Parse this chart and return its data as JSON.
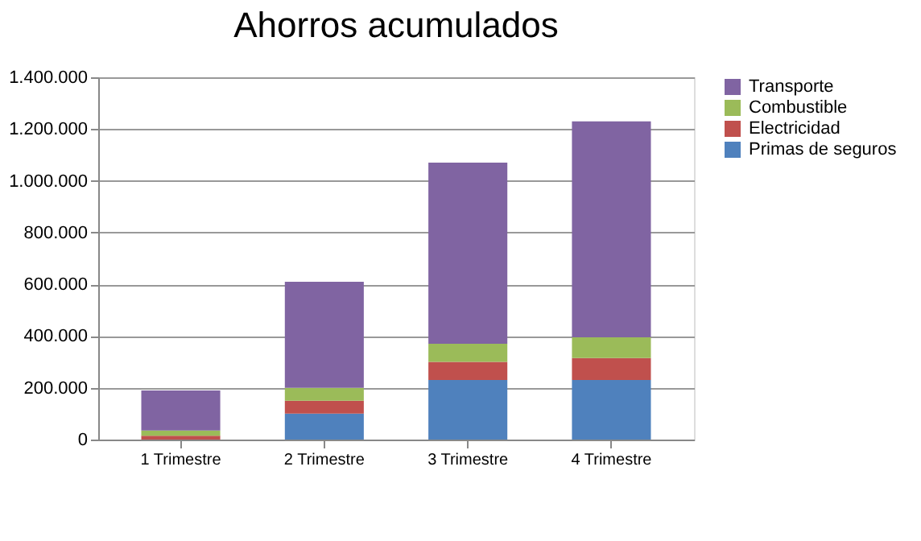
{
  "chart_data": {
    "type": "bar",
    "title": "Ahorros acumulados",
    "stacked": true,
    "categories": [
      "1 Trimestre",
      "2 Trimestre",
      "3 Trimestre",
      "4 Trimestre"
    ],
    "series": [
      {
        "name": "Primas de seguros",
        "color": "#4f81bd",
        "values": [
          0,
          100000,
          230000,
          230000
        ]
      },
      {
        "name": "Electricidad",
        "color": "#c0504d",
        "values": [
          15000,
          50000,
          70000,
          85000
        ]
      },
      {
        "name": "Combustible",
        "color": "#9bbb59",
        "values": [
          20000,
          50000,
          70000,
          80000
        ]
      },
      {
        "name": "Transporte",
        "color": "#8064a2",
        "values": [
          155000,
          410000,
          700000,
          835000
        ]
      }
    ],
    "ylim": [
      0,
      1400000
    ],
    "yticks": [
      {
        "value": 0,
        "label": "0"
      },
      {
        "value": 200000,
        "label": "200.000"
      },
      {
        "value": 400000,
        "label": "400.000"
      },
      {
        "value": 600000,
        "label": "600.000"
      },
      {
        "value": 800000,
        "label": "800.000"
      },
      {
        "value": 1000000,
        "label": "1.000.000"
      },
      {
        "value": 1200000,
        "label": "1.200.000"
      },
      {
        "value": 1400000,
        "label": "1.400.000"
      }
    ],
    "grid": "y",
    "legend": "right"
  }
}
